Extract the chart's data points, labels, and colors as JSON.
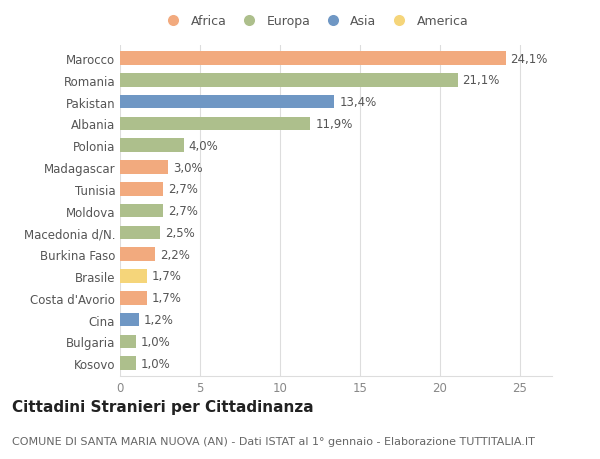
{
  "categories": [
    "Marocco",
    "Romania",
    "Pakistan",
    "Albania",
    "Polonia",
    "Madagascar",
    "Tunisia",
    "Moldova",
    "Macedonia d/N.",
    "Burkina Faso",
    "Brasile",
    "Costa d'Avorio",
    "Cina",
    "Bulgaria",
    "Kosovo"
  ],
  "values": [
    24.1,
    21.1,
    13.4,
    11.9,
    4.0,
    3.0,
    2.7,
    2.7,
    2.5,
    2.2,
    1.7,
    1.7,
    1.2,
    1.0,
    1.0
  ],
  "labels": [
    "24,1%",
    "21,1%",
    "13,4%",
    "11,9%",
    "4,0%",
    "3,0%",
    "2,7%",
    "2,7%",
    "2,5%",
    "2,2%",
    "1,7%",
    "1,7%",
    "1,2%",
    "1,0%",
    "1,0%"
  ],
  "continents": [
    "Africa",
    "Europa",
    "Asia",
    "Europa",
    "Europa",
    "Africa",
    "Africa",
    "Europa",
    "Europa",
    "Africa",
    "America",
    "Africa",
    "Asia",
    "Europa",
    "Europa"
  ],
  "colors": {
    "Africa": "#F2AA7E",
    "Europa": "#ADBF8C",
    "Asia": "#6F97C4",
    "America": "#F5D57A"
  },
  "legend_order": [
    "Africa",
    "Europa",
    "Asia",
    "America"
  ],
  "title": "Cittadini Stranieri per Cittadinanza",
  "subtitle": "COMUNE DI SANTA MARIA NUOVA (AN) - Dati ISTAT al 1° gennaio - Elaborazione TUTTITALIA.IT",
  "xlim": [
    0,
    27
  ],
  "xticks": [
    0,
    5,
    10,
    15,
    20,
    25
  ],
  "bg_color": "#ffffff",
  "grid_color": "#dddddd",
  "bar_height": 0.62,
  "label_fontsize": 8.5,
  "title_fontsize": 11,
  "subtitle_fontsize": 8,
  "tick_fontsize": 8.5,
  "legend_fontsize": 9
}
